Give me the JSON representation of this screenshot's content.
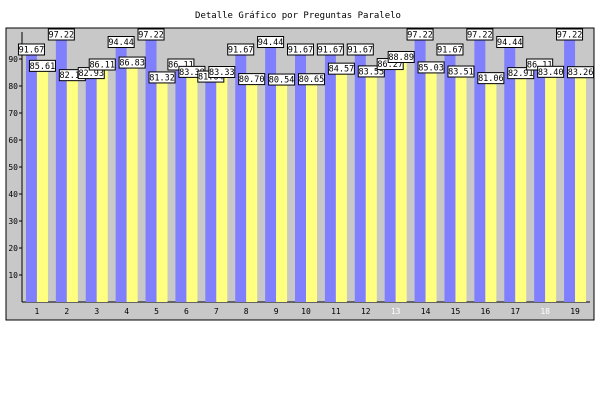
{
  "chart_data": {
    "type": "bar",
    "title": "Detalle Gráfico por Preguntas Paralelo",
    "xlabel": "",
    "ylabel": "",
    "categories": [
      "1",
      "2",
      "3",
      "4",
      "5",
      "6",
      "7",
      "8",
      "9",
      "10",
      "11",
      "12",
      "13",
      "14",
      "15",
      "16",
      "17",
      "18",
      "19"
    ],
    "dim_categories": [
      "13",
      "18"
    ],
    "ylim": [
      0,
      100
    ],
    "yticks": [
      10,
      20,
      30,
      40,
      50,
      60,
      70,
      80,
      90
    ],
    "grid": false,
    "legend": "none",
    "series": [
      {
        "values": [
          91.67,
          97.22,
          82.93,
          94.44,
          97.22,
          86.11,
          81.64,
          91.67,
          94.44,
          91.67,
          91.67,
          91.67,
          86.27,
          97.22,
          91.67,
          97.22,
          94.44,
          86.11,
          97.22
        ]
      },
      {
        "values": [
          85.61,
          82.16,
          86.11,
          86.83,
          81.32,
          83.38,
          83.33,
          80.7,
          80.54,
          80.65,
          84.57,
          83.55,
          88.89,
          85.03,
          83.51,
          81.06,
          82.91,
          83.4,
          83.26
        ]
      }
    ],
    "colors": {
      "series_a": "#8080ff",
      "series_b": "#ffff80",
      "plot_background": "#c8c8c8",
      "label_box": "#ffffff",
      "text": "#000000"
    }
  }
}
